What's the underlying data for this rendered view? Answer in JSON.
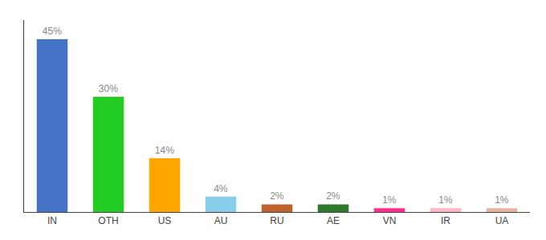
{
  "chart_data": {
    "type": "bar",
    "categories": [
      "IN",
      "OTH",
      "US",
      "AU",
      "RU",
      "AE",
      "VN",
      "IR",
      "UA"
    ],
    "values": [
      45,
      30,
      14,
      4,
      2,
      2,
      1,
      1,
      1
    ],
    "value_labels": [
      "45%",
      "30%",
      "14%",
      "4%",
      "2%",
      "2%",
      "1%",
      "1%",
      "1%"
    ],
    "colors": [
      "#4472C4",
      "#22CC22",
      "#FFA500",
      "#87CEEB",
      "#C0622D",
      "#2D7A2D",
      "#FF2D8D",
      "#FFB6C1",
      "#E8B4A0"
    ],
    "ylim": [
      0,
      50
    ],
    "grid": false,
    "data_labels": true,
    "tick_labels": "x"
  }
}
